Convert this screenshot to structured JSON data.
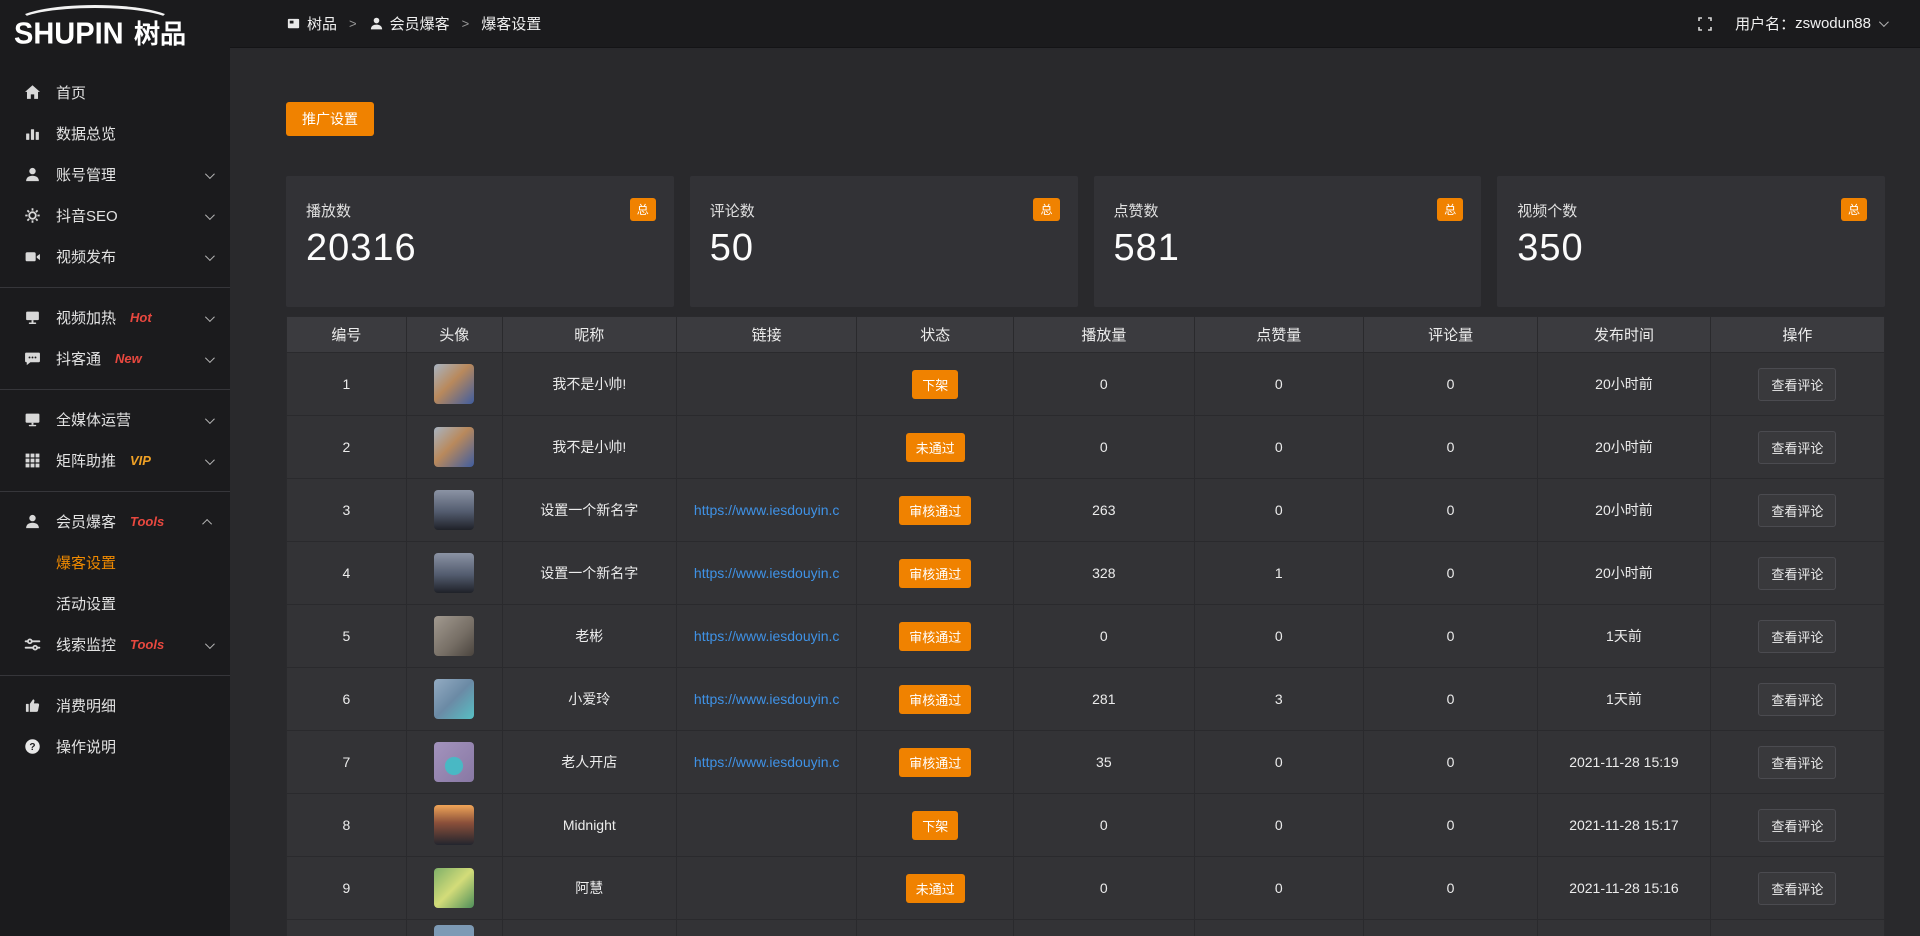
{
  "app": {
    "logo_en": "SHUPIN",
    "logo_cn": "树品"
  },
  "topbar": {
    "breadcrumb": [
      {
        "label": "树品",
        "icon": "panel-icon"
      },
      {
        "label": "会员爆客",
        "icon": "user-icon"
      },
      {
        "label": "爆客设置",
        "icon": ""
      }
    ],
    "separator": ">",
    "username_label": "用户名：",
    "username": "zswodun88"
  },
  "sidebar": {
    "items": [
      {
        "label": "首页",
        "icon": "home"
      },
      {
        "label": "数据总览",
        "icon": "bar-chart"
      },
      {
        "label": "账号管理",
        "icon": "user",
        "chevron": "down"
      },
      {
        "label": "抖音SEO",
        "icon": "gear",
        "chevron": "down"
      },
      {
        "label": "视频发布",
        "icon": "video",
        "chevron": "down"
      },
      {
        "divider": true
      },
      {
        "label": "视频加热",
        "icon": "tv",
        "tag": "Hot",
        "tag_color": "#e8483f",
        "chevron": "down"
      },
      {
        "label": "抖客通",
        "icon": "chat",
        "tag": "New",
        "tag_color": "#e8483f",
        "chevron": "down"
      },
      {
        "divider": true
      },
      {
        "label": "全媒体运营",
        "icon": "monitor",
        "chevron": "down"
      },
      {
        "label": "矩阵助推",
        "icon": "grid",
        "tag": "VIP",
        "tag_color": "#f0a125",
        "chevron": "down"
      },
      {
        "divider": true
      },
      {
        "label": "会员爆客",
        "icon": "user",
        "tag": "Tools",
        "tag_color": "#e8483f",
        "chevron": "up",
        "children": [
          {
            "label": "爆客设置",
            "active": true
          },
          {
            "label": "活动设置",
            "active": false
          }
        ]
      },
      {
        "label": "线索监控",
        "icon": "sliders",
        "tag": "Tools",
        "tag_color": "#e8483f",
        "chevron": "down"
      },
      {
        "divider": true
      },
      {
        "label": "消费明细",
        "icon": "wallet"
      },
      {
        "label": "操作说明",
        "icon": "question"
      }
    ]
  },
  "toolbar": {
    "promo_button": "推广设置"
  },
  "stats": [
    {
      "label": "播放数",
      "value": "20316",
      "badge": "总"
    },
    {
      "label": "评论数",
      "value": "50",
      "badge": "总"
    },
    {
      "label": "点赞数",
      "value": "581",
      "badge": "总"
    },
    {
      "label": "视频个数",
      "value": "350",
      "badge": "总"
    }
  ],
  "table": {
    "headers": [
      "编号",
      "头像",
      "昵称",
      "链接",
      "状态",
      "播放量",
      "点赞量",
      "评论量",
      "发布时间",
      "操作"
    ],
    "action_label": "查看评论",
    "rows": [
      {
        "no": "1",
        "avatar": "av-boy",
        "nickname": "我不是小帅!",
        "link": "",
        "status": "下架",
        "plays": "0",
        "likes": "0",
        "comments": "0",
        "time": "20小时前"
      },
      {
        "no": "2",
        "avatar": "av-boy",
        "nickname": "我不是小帅!",
        "link": "",
        "status": "未通过",
        "plays": "0",
        "likes": "0",
        "comments": "0",
        "time": "20小时前"
      },
      {
        "no": "3",
        "avatar": "av-sky",
        "nickname": "设置一个新名字",
        "link": "https://www.iesdouyin.c",
        "status": "审核通过",
        "plays": "263",
        "likes": "0",
        "comments": "0",
        "time": "20小时前"
      },
      {
        "no": "4",
        "avatar": "av-sky",
        "nickname": "设置一个新名字",
        "link": "https://www.iesdouyin.c",
        "status": "审核通过",
        "plays": "328",
        "likes": "1",
        "comments": "0",
        "time": "20小时前"
      },
      {
        "no": "5",
        "avatar": "av-man",
        "nickname": "老彬",
        "link": "https://www.iesdouyin.c",
        "status": "审核通过",
        "plays": "0",
        "likes": "0",
        "comments": "0",
        "time": "1天前"
      },
      {
        "no": "6",
        "avatar": "av-girl",
        "nickname": "小爱玲",
        "link": "https://www.iesdouyin.c",
        "status": "审核通过",
        "plays": "281",
        "likes": "3",
        "comments": "0",
        "time": "1天前"
      },
      {
        "no": "7",
        "avatar": "av-purple",
        "nickname": "老人开店",
        "link": "https://www.iesdouyin.c",
        "status": "审核通过",
        "plays": "35",
        "likes": "0",
        "comments": "0",
        "time": "2021-11-28 15:19"
      },
      {
        "no": "8",
        "avatar": "av-sunset",
        "nickname": "Midnight",
        "link": "",
        "status": "下架",
        "plays": "0",
        "likes": "0",
        "comments": "0",
        "time": "2021-11-28 15:17"
      },
      {
        "no": "9",
        "avatar": "av-green",
        "nickname": "阿慧",
        "link": "",
        "status": "未通过",
        "plays": "0",
        "likes": "0",
        "comments": "0",
        "time": "2021-11-28 15:16"
      }
    ],
    "partial_row_avatar": "av-blue",
    "column_widths_pct": [
      7.5,
      6.0,
      10.9,
      11.3,
      9.8,
      11.3,
      10.6,
      10.9,
      10.8,
      10.9
    ]
  },
  "colors": {
    "accent": "#f08200",
    "link": "#3f92e6",
    "active_menu": "#f08a00"
  }
}
